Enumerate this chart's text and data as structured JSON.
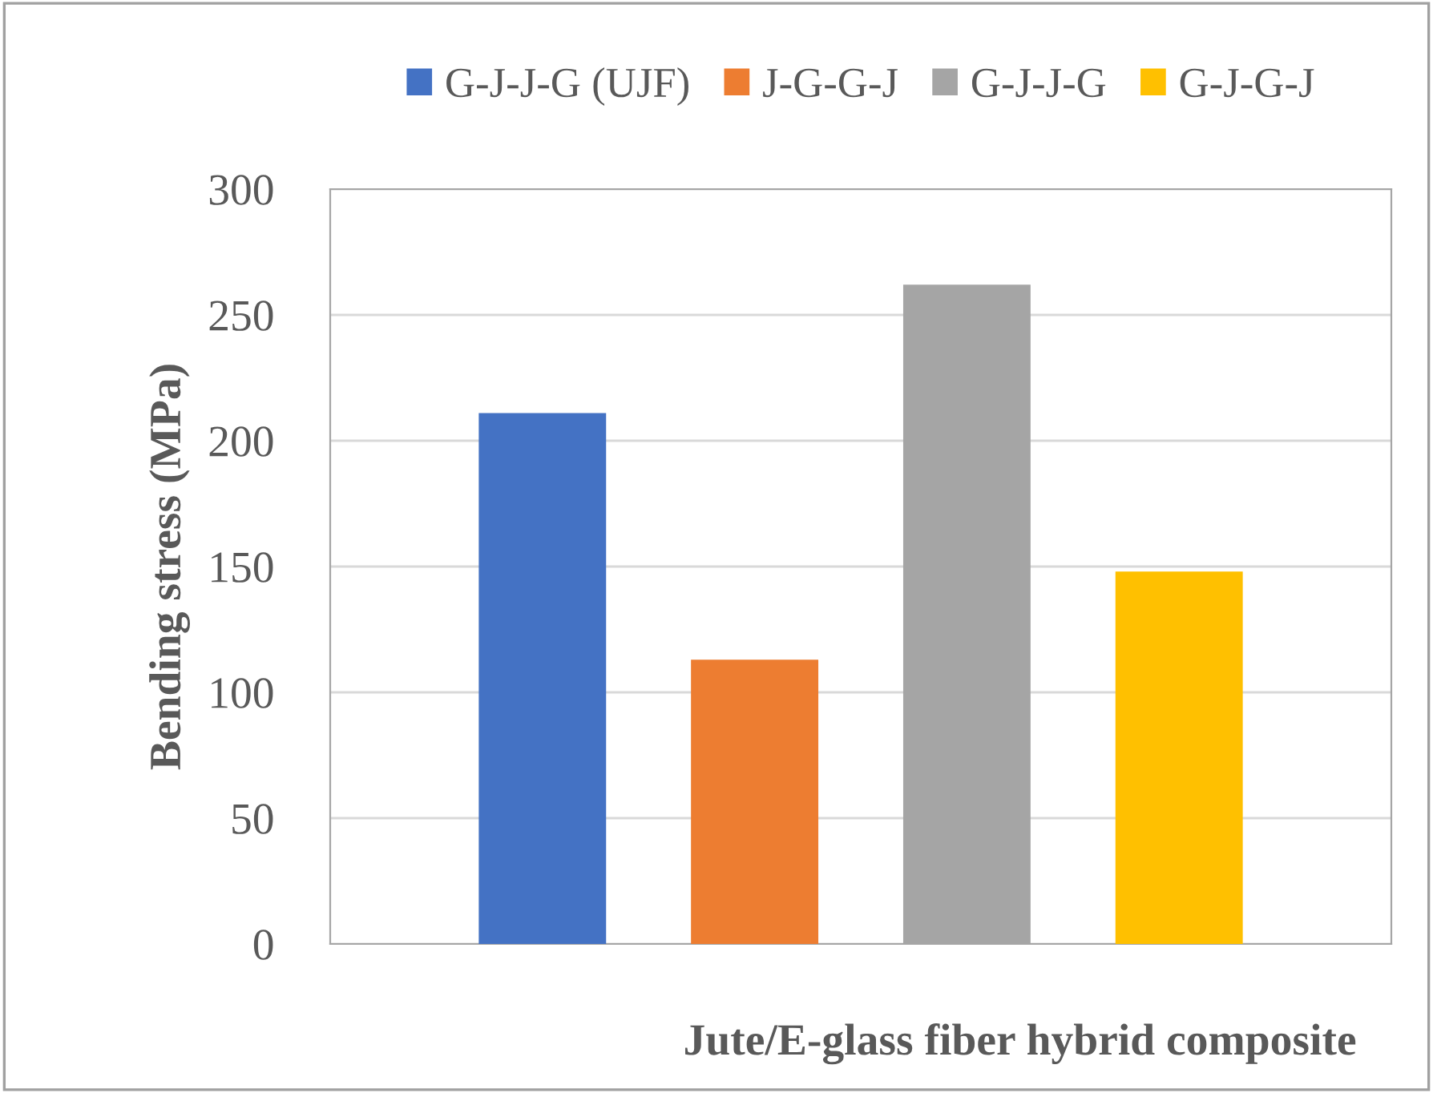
{
  "chart_data": {
    "type": "bar",
    "xlabel": "Jute/E-glass fiber hybrid composite",
    "ylabel": "Bending stress (MPa)",
    "categories": [
      null
    ],
    "series": [
      {
        "name": "G-J-J-G (UJF)",
        "color": "#4472c4",
        "values": [
          211
        ]
      },
      {
        "name": "J-G-G-J",
        "color": "#ed7d31",
        "values": [
          113
        ]
      },
      {
        "name": "G-J-J-G",
        "color": "#a5a5a5",
        "values": [
          262
        ]
      },
      {
        "name": "G-J-G-J",
        "color": "#ffc000",
        "values": [
          148
        ]
      }
    ],
    "ylim": [
      0,
      300
    ],
    "yticks": [
      0,
      50,
      100,
      150,
      200,
      250,
      300
    ],
    "grid": "y",
    "legend": "top"
  }
}
